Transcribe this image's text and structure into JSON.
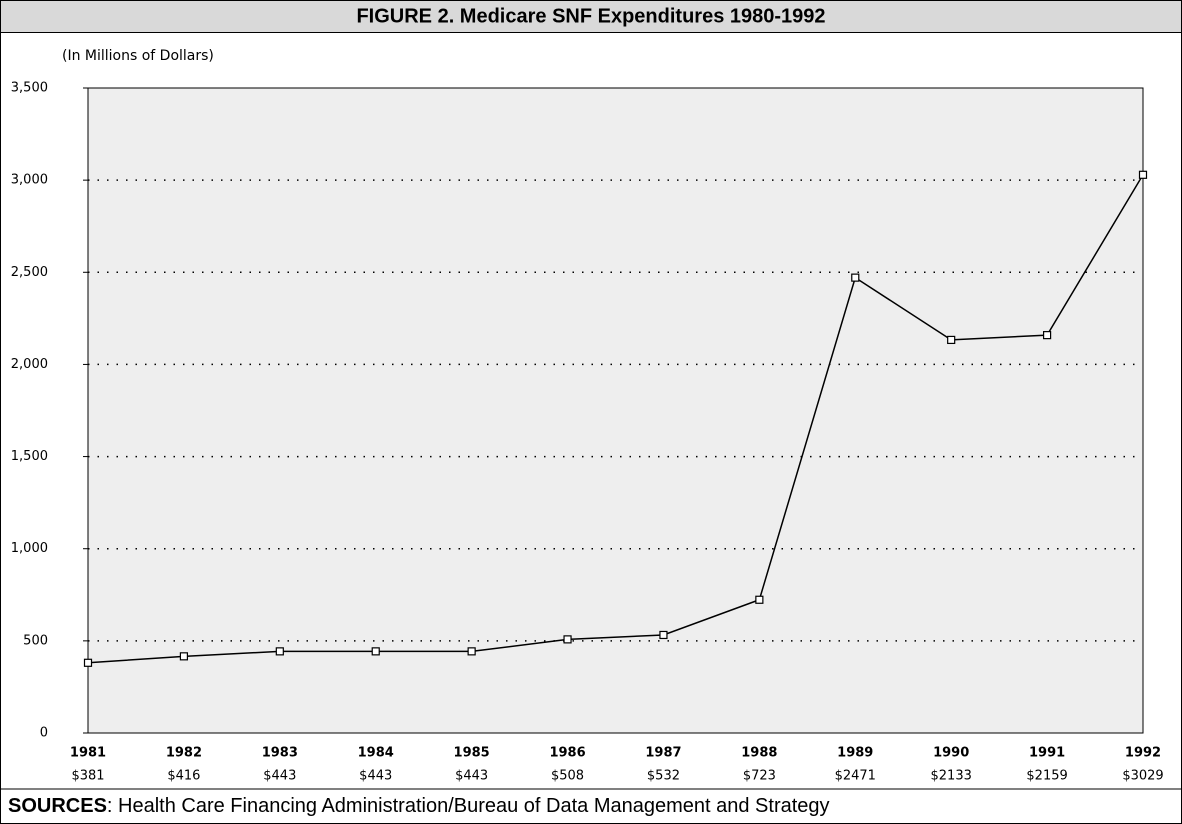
{
  "chart_data": {
    "type": "line",
    "title": "FIGURE 2. Medicare SNF Expenditures 1980-1992",
    "subtitle": "(In Millions of Dollars)",
    "categories": [
      "1981",
      "1982",
      "1983",
      "1984",
      "1985",
      "1986",
      "1987",
      "1988",
      "1989",
      "1990",
      "1991",
      "1992"
    ],
    "values": [
      381,
      416,
      443,
      443,
      443,
      508,
      532,
      723,
      2471,
      2133,
      2159,
      3029
    ],
    "value_labels": [
      "$381",
      "$416",
      "$443",
      "$443",
      "$443",
      "$508",
      "$532",
      "$723",
      "$2471",
      "$2133",
      "$2159",
      "$3029"
    ],
    "color": "#000000",
    "ylim": [
      0,
      3500
    ],
    "yticks": [
      0,
      500,
      {
        "value": 1000,
        "label": "1,000"
      },
      {
        "value": 1500,
        "label": "1,500"
      },
      {
        "value": 2000,
        "label": "2,000"
      },
      {
        "value": 2500,
        "label": "2,500"
      },
      {
        "value": 3000,
        "label": "3,000"
      },
      {
        "value": 3500,
        "label": "3,500"
      }
    ],
    "grid": true,
    "sources_label": "SOURCES",
    "sources_text": ":  Health Care Financing Administration/Bureau of Data Management and Strategy"
  }
}
